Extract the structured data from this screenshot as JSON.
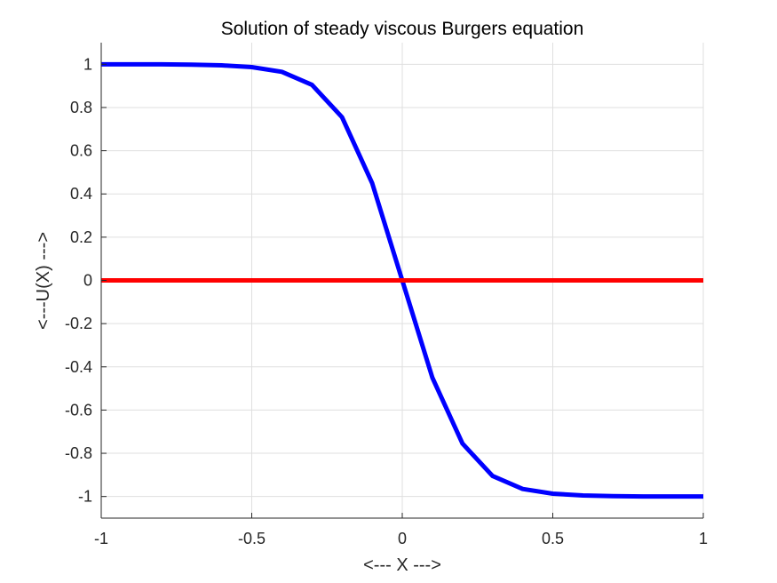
{
  "chart_data": {
    "type": "line",
    "title": "Solution of steady viscous Burgers equation",
    "xlabel": "<--- X --->",
    "ylabel": "<---U(X) --->",
    "xlim": [
      -1,
      1
    ],
    "ylim": [
      -1.1,
      1.1
    ],
    "grid": true,
    "x_ticks": [
      -1,
      -0.5,
      0,
      0.5,
      1
    ],
    "x_tick_labels": [
      "-1",
      "-0.5",
      "0",
      "0.5",
      "1"
    ],
    "y_ticks": [
      1,
      0.8,
      0.6,
      0.4,
      0.2,
      0,
      -0.2,
      -0.4,
      -0.6,
      -0.8,
      -1
    ],
    "y_tick_labels": [
      "1",
      "0.8",
      "0.6",
      "0.4",
      "0.2",
      "0",
      "-0.2",
      "-0.4",
      "-0.6",
      "-0.8",
      "-1"
    ],
    "series": [
      {
        "color": "#0000ff",
        "x": [
          -1,
          -0.9,
          -0.8,
          -0.7,
          -0.6,
          -0.5,
          -0.4,
          -0.3,
          -0.2,
          -0.1,
          0,
          0.1,
          0.2,
          0.3,
          0.4,
          0.5,
          0.6,
          0.7,
          0.8,
          0.9,
          1
        ],
        "y": [
          1.0,
          1.0,
          1.0,
          0.998,
          0.995,
          0.987,
          0.965,
          0.905,
          0.755,
          0.45,
          0.0,
          -0.45,
          -0.755,
          -0.905,
          -0.965,
          -0.987,
          -0.995,
          -0.998,
          -1.0,
          -1.0,
          -1.0
        ]
      },
      {
        "color": "#ff0000",
        "x": [
          -1,
          1
        ],
        "y": [
          0,
          0
        ]
      }
    ]
  }
}
